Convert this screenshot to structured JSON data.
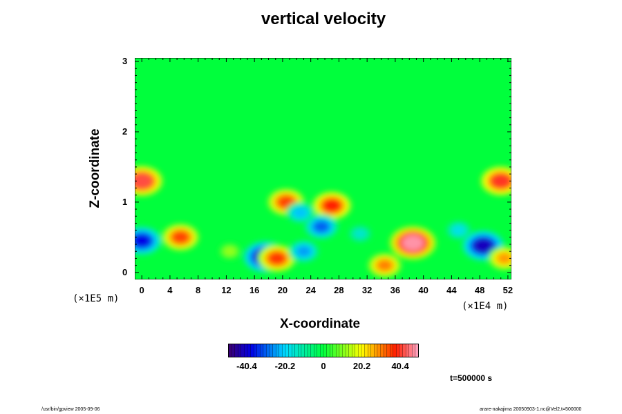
{
  "chart_data": {
    "type": "heatmap",
    "title": "vertical velocity",
    "xlabel": "X-coordinate",
    "ylabel": "Z-coordinate",
    "x_scale_label": "(×1E4 m)",
    "y_scale_label": "(×1E5 m)",
    "xlim": [
      -1,
      52.5
    ],
    "ylim": [
      -0.1,
      3.05
    ],
    "xticks": [
      "0",
      "4",
      "8",
      "12",
      "16",
      "20",
      "24",
      "28",
      "32",
      "36",
      "40",
      "44",
      "48",
      "52"
    ],
    "yticks": [
      "0",
      "1",
      "2",
      "3"
    ],
    "colorbar": {
      "range": [
        -50,
        50
      ],
      "ticks": [
        "-40.4",
        "-20.2",
        "0",
        "20.2",
        "40.4"
      ],
      "colormap": "rainbow"
    },
    "background_value": 0,
    "features": [
      {
        "x": 5.5,
        "z": 0.5,
        "value": 35
      },
      {
        "x": 38.5,
        "z": 0.42,
        "value": 48
      },
      {
        "x": 48.5,
        "z": 0.38,
        "value": -42
      },
      {
        "x": 0.0,
        "z": 0.45,
        "value": -38
      },
      {
        "x": 17.5,
        "z": 0.22,
        "value": -44
      },
      {
        "x": 19.2,
        "z": 0.2,
        "value": 36
      },
      {
        "x": 0.0,
        "z": 1.3,
        "value": 42
      },
      {
        "x": 51.0,
        "z": 1.3,
        "value": 40
      },
      {
        "x": 20.5,
        "z": 1.0,
        "value": 35
      },
      {
        "x": 27.0,
        "z": 0.95,
        "value": 38
      },
      {
        "x": 25.5,
        "z": 0.65,
        "value": -30
      },
      {
        "x": 23.0,
        "z": 0.3,
        "value": -25
      },
      {
        "x": 22.5,
        "z": 0.85,
        "value": -22
      },
      {
        "x": 34.5,
        "z": 0.1,
        "value": 30
      },
      {
        "x": 51.5,
        "z": 0.2,
        "value": 28
      },
      {
        "x": 31.0,
        "z": 0.55,
        "value": -15
      },
      {
        "x": 12.5,
        "z": 0.3,
        "value": 12
      },
      {
        "x": 45.0,
        "z": 0.6,
        "value": -18
      }
    ]
  },
  "annotations": {
    "time": "t=500000 s",
    "footer_left": "/usr/bin/gpview 2005-09-06",
    "footer_right": "arare-nakajima 20050903-1.nc@Vel2,t=500000"
  },
  "colors": {
    "background": "#00ff33",
    "neg_max": "#1a0066",
    "pos_max": "#ff3333",
    "extreme": "#ffffff"
  }
}
